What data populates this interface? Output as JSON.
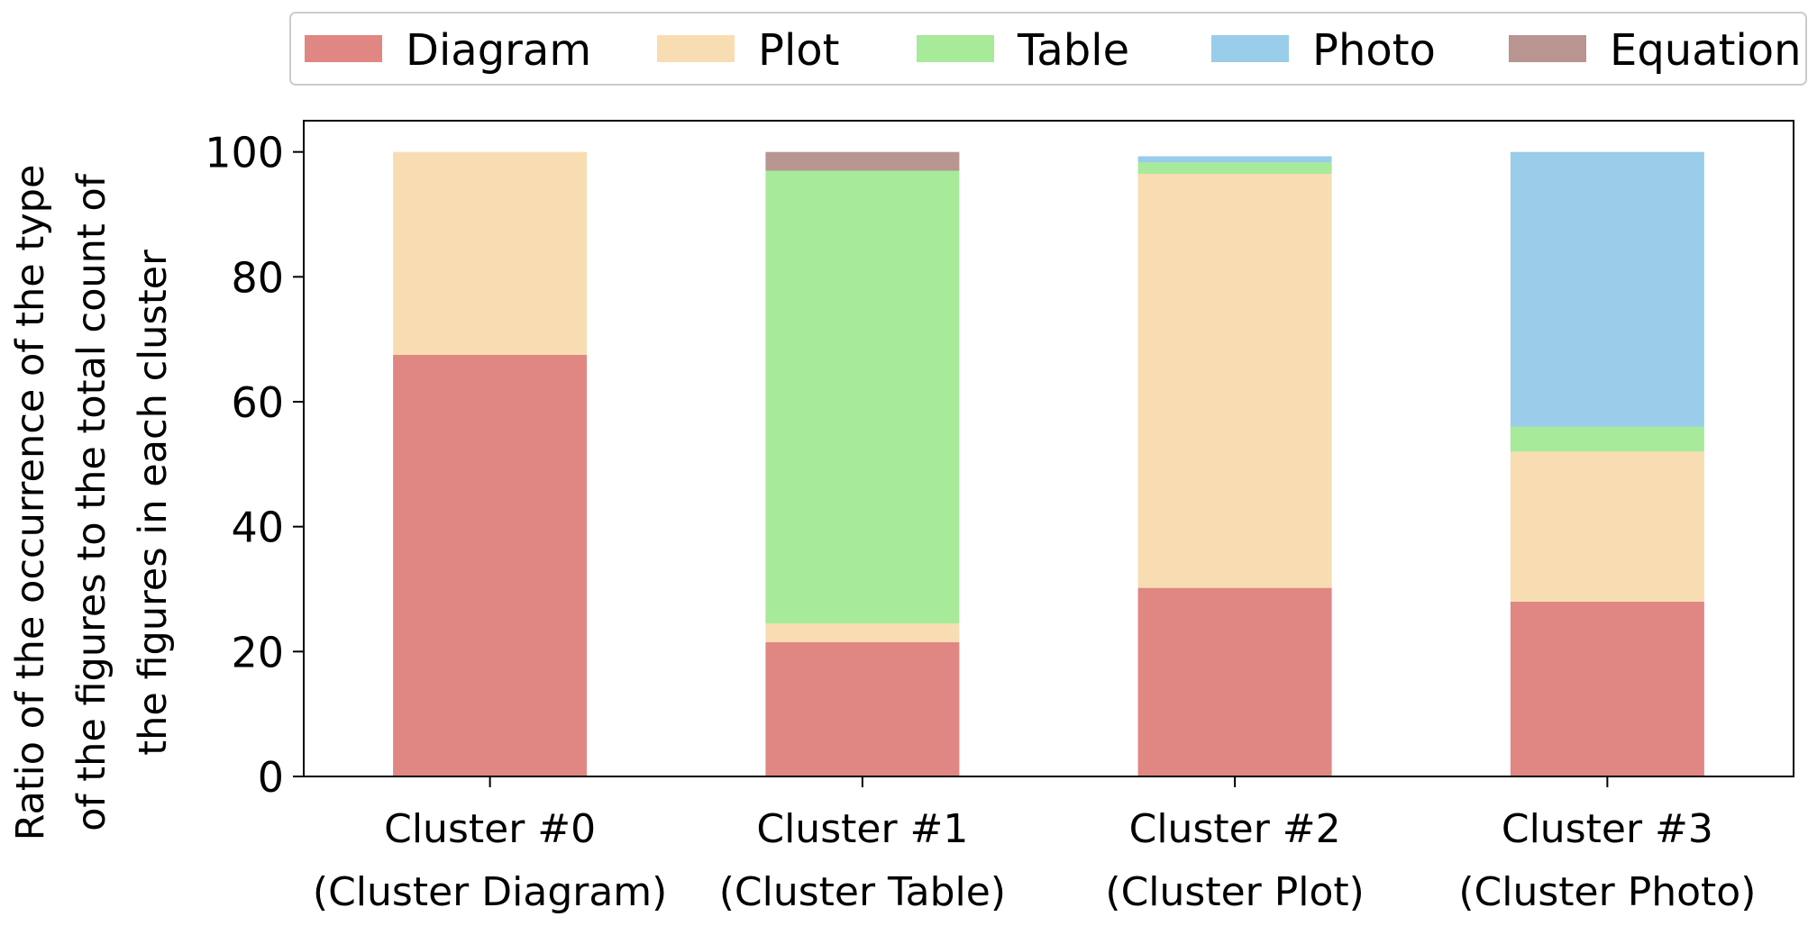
{
  "chart_data": {
    "type": "bar",
    "stacked": true,
    "categories": [
      [
        "Cluster #0",
        "(Cluster Diagram)"
      ],
      [
        "Cluster #1",
        "(Cluster Table)"
      ],
      [
        "Cluster #2",
        "(Cluster Plot)"
      ],
      [
        "Cluster #3",
        "(Cluster Photo)"
      ]
    ],
    "series": [
      {
        "name": "Diagram",
        "color": "#e08783",
        "values": [
          67.5,
          21.5,
          30.2,
          28.0
        ]
      },
      {
        "name": "Plot",
        "color": "#f8ddb2",
        "values": [
          32.5,
          3.0,
          66.3,
          24.0
        ]
      },
      {
        "name": "Table",
        "color": "#a7ea9a",
        "values": [
          0.0,
          72.5,
          1.8,
          4.0
        ]
      },
      {
        "name": "Photo",
        "color": "#9acde9",
        "values": [
          0.0,
          0.0,
          1.0,
          44.0
        ]
      },
      {
        "name": "Equation",
        "color": "#b89591",
        "values": [
          0.0,
          3.0,
          0.0,
          0.0
        ]
      }
    ],
    "ylabel": [
      "Ratio of the occurrence of the type",
      "of the figures to the total count of",
      "the figures in each cluster"
    ],
    "xlabel": "",
    "title": "",
    "ylim": [
      0,
      105
    ],
    "yticks": [
      0,
      20,
      40,
      60,
      80,
      100
    ],
    "grid": false,
    "legend_position": "top"
  }
}
